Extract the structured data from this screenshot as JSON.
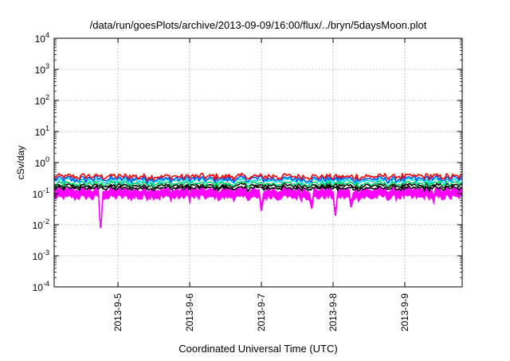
{
  "chart_data": {
    "type": "line",
    "title": "/data/run/goesPlots/archive/2013-09-09/16:00/flux/../bryn/5daysMoon.plot",
    "xlabel": "Coordinated Universal Time (UTC)",
    "ylabel": "cSv/day",
    "y_scale": "log",
    "ylim_exponents": [
      -4,
      4
    ],
    "y_tick_exponents": [
      -4,
      -3,
      -2,
      -1,
      0,
      1,
      2,
      3,
      4
    ],
    "x_unit": "days since 2013-09-04 00:00 UTC",
    "xlim": [
      4.03,
      9.72
    ],
    "x_ticks": [
      {
        "label": "2013-9-5",
        "x": 4.92
      },
      {
        "label": "2013-9-6",
        "x": 5.92
      },
      {
        "label": "2013-9-7",
        "x": 6.92
      },
      {
        "label": "2013-9-8",
        "x": 7.92
      },
      {
        "label": "2013-9-9",
        "x": 8.92
      }
    ],
    "grid": true,
    "series": [
      {
        "name": "series-magenta",
        "color": "#ff00ff",
        "fill_to_baseline": true,
        "base_value": 0.13,
        "noise": 0.35,
        "dips": [
          {
            "x": 4.68,
            "value": 0.014
          },
          {
            "x": 5.92,
            "value": 0.075
          },
          {
            "x": 6.92,
            "value": 0.05
          },
          {
            "x": 7.62,
            "value": 0.06
          },
          {
            "x": 7.95,
            "value": 0.035
          },
          {
            "x": 8.17,
            "value": 0.065
          },
          {
            "x": 9.32,
            "value": 0.075
          }
        ]
      },
      {
        "name": "series-black-lower",
        "color": "#000000",
        "base_value": 0.15,
        "noise": 0.22
      },
      {
        "name": "series-black-upper",
        "color": "#000000",
        "base_value": 0.18,
        "noise": 0.22
      },
      {
        "name": "series-green",
        "color": "#00cc66",
        "base_value": 0.21,
        "noise": 0.25
      },
      {
        "name": "series-cyan",
        "color": "#00dddd",
        "base_value": 0.26,
        "noise": 0.28
      },
      {
        "name": "series-blue",
        "color": "#0055ff",
        "base_value": 0.3,
        "noise": 0.3
      },
      {
        "name": "series-red",
        "color": "#ff0000",
        "base_value": 0.36,
        "noise": 0.3
      }
    ]
  }
}
